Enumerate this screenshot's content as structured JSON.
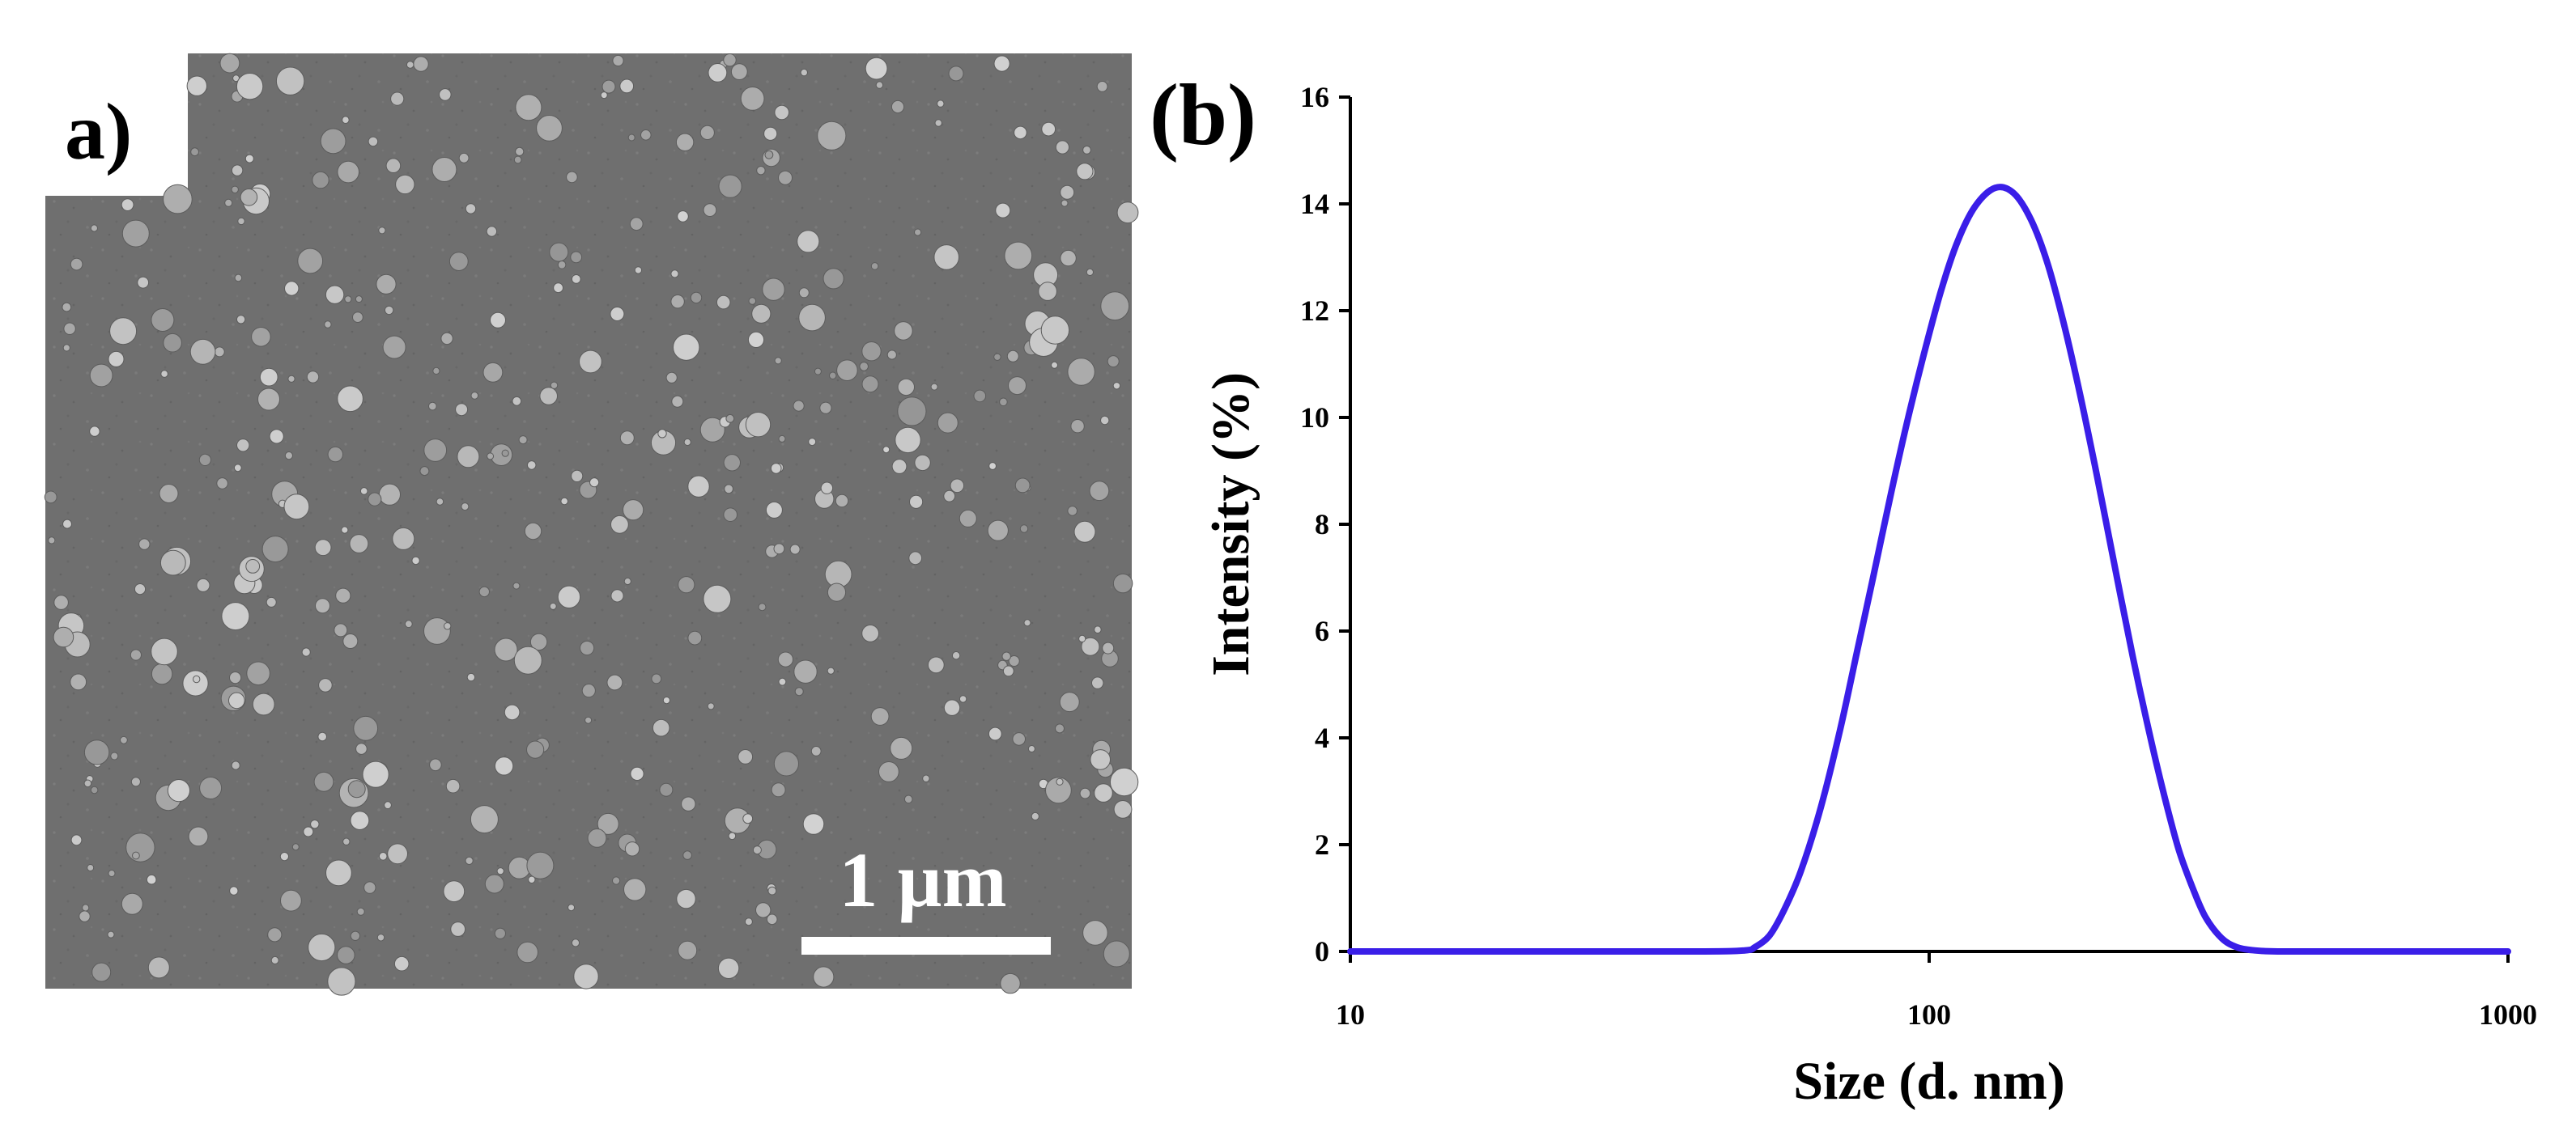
{
  "panel_a": {
    "label": "a)",
    "scale_bar_label": "1 µm"
  },
  "panel_b": {
    "label": "(b)"
  },
  "chart_data": {
    "type": "line",
    "xlabel": "Size (d. nm)",
    "ylabel": "Intensity (%)",
    "x_scale": "log",
    "xlim": [
      10,
      1000
    ],
    "ylim": [
      0,
      16
    ],
    "x_ticks": [
      "10",
      "100",
      "1000"
    ],
    "y_ticks": [
      "0",
      "2",
      "4",
      "6",
      "8",
      "10",
      "12",
      "14",
      "16"
    ],
    "grid": false,
    "series": [
      {
        "color": "#3a1ee8",
        "x": [
          10,
          20,
          40,
          48,
          50,
          53,
          56,
          60,
          65,
          70,
          75,
          80,
          86,
          92,
          98,
          105,
          112,
          120,
          130,
          140,
          150,
          160,
          170,
          180,
          190,
          200,
          212,
          225,
          240,
          255,
          270,
          285,
          300,
          320,
          340,
          365,
          400,
          500,
          700,
          1000
        ],
        "y": [
          0,
          0,
          0,
          0.02,
          0.08,
          0.3,
          0.75,
          1.5,
          2.7,
          4.1,
          5.6,
          7.0,
          8.6,
          10.0,
          11.2,
          12.4,
          13.3,
          13.95,
          14.3,
          14.2,
          13.7,
          12.9,
          11.85,
          10.7,
          9.5,
          8.3,
          6.9,
          5.5,
          4.1,
          2.9,
          1.9,
          1.2,
          0.65,
          0.25,
          0.08,
          0.02,
          0,
          0,
          0,
          0
        ]
      }
    ]
  }
}
